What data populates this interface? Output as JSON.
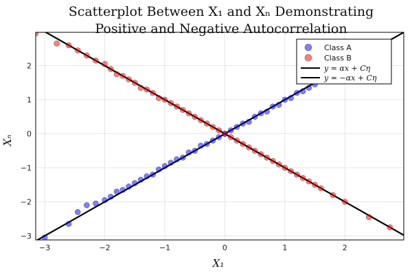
{
  "chart_data": {
    "type": "scatter",
    "title_line1": "Scatterplot Between X₁ and Xₙ Demonstrating",
    "title_line2": "Positive and Negative Autocorrelation",
    "xlabel": "X₁",
    "ylabel": "Xₙ",
    "xlim": [
      -3.15,
      2.98
    ],
    "ylim": [
      -3.12,
      2.98
    ],
    "xticks": [
      -3,
      -2,
      -1,
      0,
      1,
      2
    ],
    "yticks": [
      -3,
      -2,
      -1,
      0,
      1,
      2
    ],
    "grid": true,
    "legend_position": "top-right",
    "series": [
      {
        "name": "Class A",
        "kind": "points",
        "color": "#0000ff",
        "alpha": 0.5,
        "x": [
          -3.0,
          -2.6,
          -2.45,
          -2.3,
          -2.15,
          -2.0,
          -1.9,
          -1.8,
          -1.7,
          -1.6,
          -1.5,
          -1.4,
          -1.3,
          -1.2,
          -1.1,
          -1.0,
          -0.9,
          -0.8,
          -0.7,
          -0.6,
          -0.5,
          -0.4,
          -0.3,
          -0.2,
          -0.1,
          0.0,
          0.1,
          0.2,
          0.3,
          0.4,
          0.5,
          0.6,
          0.7,
          0.8,
          0.9,
          1.0,
          1.1,
          1.2,
          1.3,
          1.4,
          1.5,
          1.6,
          1.7,
          1.8,
          2.0,
          2.2,
          2.7
        ],
        "y": [
          -3.05,
          -2.65,
          -2.3,
          -2.1,
          -2.05,
          -1.95,
          -1.85,
          -1.7,
          -1.65,
          -1.55,
          -1.45,
          -1.35,
          -1.25,
          -1.2,
          -1.05,
          -0.95,
          -0.85,
          -0.75,
          -0.7,
          -0.55,
          -0.5,
          -0.35,
          -0.3,
          -0.2,
          -0.1,
          0.0,
          0.1,
          0.2,
          0.3,
          0.35,
          0.5,
          0.6,
          0.65,
          0.8,
          0.85,
          1.0,
          1.05,
          1.2,
          1.25,
          1.35,
          1.45,
          1.55,
          1.7,
          1.8,
          1.95,
          2.15,
          2.7
        ]
      },
      {
        "name": "Class B",
        "kind": "points",
        "color": "#ff0000",
        "alpha": 0.5,
        "x": [
          -3.15,
          -2.8,
          -2.6,
          -2.45,
          -2.3,
          -2.15,
          -2.0,
          -1.9,
          -1.8,
          -1.7,
          -1.6,
          -1.5,
          -1.4,
          -1.3,
          -1.2,
          -1.1,
          -1.0,
          -0.9,
          -0.8,
          -0.7,
          -0.6,
          -0.5,
          -0.4,
          -0.3,
          -0.2,
          -0.1,
          0.0,
          0.1,
          0.2,
          0.3,
          0.4,
          0.5,
          0.6,
          0.7,
          0.8,
          0.9,
          1.0,
          1.1,
          1.2,
          1.3,
          1.4,
          1.5,
          1.6,
          1.8,
          2.0,
          2.4,
          2.75
        ],
        "y": [
          2.95,
          2.65,
          2.6,
          2.45,
          2.3,
          2.15,
          2.05,
          1.9,
          1.75,
          1.7,
          1.6,
          1.5,
          1.35,
          1.3,
          1.2,
          1.05,
          1.0,
          0.9,
          0.8,
          0.7,
          0.6,
          0.5,
          0.4,
          0.3,
          0.2,
          0.1,
          0.0,
          -0.1,
          -0.2,
          -0.3,
          -0.4,
          -0.5,
          -0.6,
          -0.7,
          -0.8,
          -0.9,
          -1.0,
          -1.1,
          -1.2,
          -1.3,
          -1.4,
          -1.5,
          -1.6,
          -1.8,
          -2.0,
          -2.45,
          -2.75
        ]
      },
      {
        "name": "y = αx + Cη",
        "kind": "line",
        "color": "#000000",
        "x": [
          -3.15,
          2.98
        ],
        "y": [
          -3.15,
          2.98
        ]
      },
      {
        "name": "y = −αx + Cη",
        "kind": "line",
        "color": "#000000",
        "x": [
          -3.15,
          2.98
        ],
        "y": [
          3.15,
          -2.98
        ]
      }
    ]
  }
}
